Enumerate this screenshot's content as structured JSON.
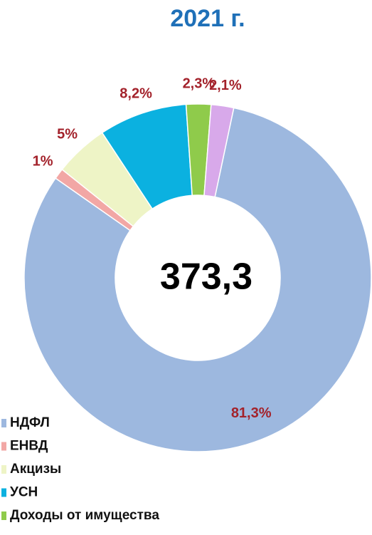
{
  "chart_data": {
    "type": "donut",
    "title": "2021 г.",
    "center_label": "373,3",
    "categories": [
      "НДФЛ",
      "ЕНВД",
      "Акцизы",
      "УСН",
      "Доходы от имущества",
      null
    ],
    "values": [
      81.3,
      1,
      5,
      8.2,
      2.3,
      2.1
    ],
    "value_labels": [
      "81,3%",
      "1%",
      "5%",
      "8,2%",
      "2,3%",
      "2,1%"
    ],
    "colors": [
      "#9db8df",
      "#f2a7a5",
      "#eef4c6",
      "#0bb1e0",
      "#8fcb4b",
      "#d8a9ea"
    ],
    "label_color": "#a3222b",
    "title_color": "#1f70b8"
  }
}
